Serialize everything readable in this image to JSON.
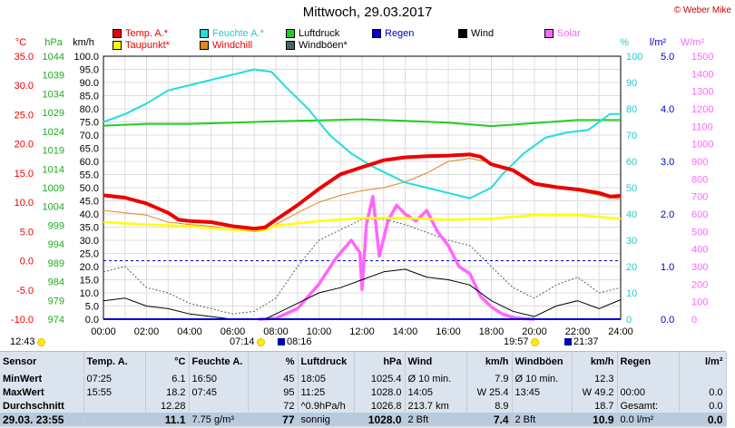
{
  "header": {
    "title": "Mittwoch, 29.03.2017",
    "copyright": "© Weber Mike"
  },
  "legend": [
    {
      "label": "Temp. A.*",
      "color": "#ee0000"
    },
    {
      "label": "Taupunkt*",
      "color": "#ffff00"
    },
    {
      "label": "Feuchte A.*",
      "color": "#22dddd"
    },
    {
      "label": "Windchill",
      "color": "#dd8822"
    },
    {
      "label": "Luftdruck",
      "color": "#22cc22"
    },
    {
      "label": "Windböen*",
      "color": "#446666"
    },
    {
      "label": "Regen",
      "color": "#0000dd"
    },
    {
      "label": "Wind",
      "color": "#000000"
    },
    {
      "label": "Solar",
      "color": "#ff66ff"
    }
  ],
  "events": {
    "sunrise_approx": "07:14",
    "moonrise": "08:16",
    "sunset_approx": "19:57",
    "moonset": "21:37",
    "extra_time": "12:43"
  },
  "chart_data": {
    "type": "line",
    "title": "Mittwoch, 29.03.2017",
    "x_range": [
      "00:00",
      "24:00"
    ],
    "x_ticks": [
      "00:00",
      "02:00",
      "04:00",
      "06:00",
      "08:00",
      "10:00",
      "12:00",
      "14:00",
      "16:00",
      "18:00",
      "20:00",
      "22:00",
      "24:00"
    ],
    "axes": {
      "temp": {
        "unit": "°C",
        "range": [
          -10,
          35
        ],
        "ticks": [
          "35.0",
          "30.0",
          "25.0",
          "20.0",
          "15.0",
          "10.0",
          "5.0",
          "0.0",
          "-5.0",
          "-10.0"
        ]
      },
      "pressure": {
        "unit": "hPa",
        "range": [
          974,
          1044
        ],
        "ticks": [
          "1044",
          "1039",
          "1034",
          "1029",
          "1024",
          "1019",
          "1014",
          "1009",
          "1004",
          "999",
          "994",
          "989",
          "984",
          "979",
          "974"
        ]
      },
      "wind": {
        "unit": "km/h",
        "range": [
          0,
          100
        ],
        "ticks": [
          "100.0",
          "95.0",
          "90.0",
          "85.0",
          "80.0",
          "75.0",
          "70.0",
          "65.0",
          "60.0",
          "55.0",
          "50.0",
          "45.0",
          "40.0",
          "35.0",
          "30.0",
          "25.0",
          "20.0",
          "15.0",
          "10.0",
          "5.0",
          "0.0"
        ]
      },
      "humidity": {
        "unit": "%",
        "range": [
          0,
          100
        ],
        "ticks": [
          "100",
          "90",
          "80",
          "70",
          "60",
          "50",
          "40",
          "30",
          "20",
          "10",
          "0"
        ]
      },
      "rain": {
        "unit": "l/m²",
        "range": [
          0,
          5
        ],
        "ticks": [
          "5.0",
          "4.0",
          "3.0",
          "2.0",
          "1.0",
          "0.0"
        ]
      },
      "solar": {
        "unit": "W/m²",
        "range": [
          0,
          1500
        ],
        "ticks": [
          "1500",
          "1400",
          "1300",
          "1200",
          "1100",
          "1000",
          "900",
          "800",
          "700",
          "600",
          "500",
          "400",
          "300",
          "200",
          "100",
          "0"
        ]
      }
    },
    "series": [
      {
        "name": "Temp. A.*",
        "axis": "temp",
        "color": "#ee0000",
        "x": [
          0,
          1,
          2,
          3,
          3.5,
          4,
          5,
          6,
          7,
          7.5,
          8,
          9,
          10,
          11,
          12,
          12.5,
          13,
          14,
          15,
          16,
          17,
          17.5,
          18,
          19,
          20,
          21,
          22,
          23,
          23.5,
          24
        ],
        "y": [
          11.2,
          10.8,
          9.8,
          8.2,
          7.0,
          6.8,
          6.6,
          5.9,
          5.5,
          5.7,
          7.0,
          9.5,
          12.3,
          14.8,
          16.0,
          16.6,
          17.2,
          17.7,
          17.9,
          18.0,
          18.2,
          17.8,
          16.5,
          15.5,
          13.2,
          12.6,
          12.2,
          11.6,
          11.0,
          11.1
        ]
      },
      {
        "name": "Taupunkt*",
        "axis": "temp",
        "color": "#ffff00",
        "x": [
          0,
          2,
          4,
          6,
          7.5,
          8,
          10,
          12,
          14,
          16,
          18,
          20,
          22,
          24
        ],
        "y": [
          6.6,
          6.2,
          5.9,
          5.3,
          5.3,
          6.0,
          6.8,
          7.3,
          7.3,
          7.0,
          7.2,
          7.8,
          7.8,
          7.2
        ]
      },
      {
        "name": "Feuchte A.*",
        "axis": "humidity",
        "color": "#22dddd",
        "x": [
          0,
          1,
          2,
          3,
          4,
          5,
          6,
          7,
          7.8,
          8.5,
          9.5,
          10.5,
          11.5,
          12.5,
          14,
          15,
          16,
          17,
          18,
          18.5,
          19.5,
          20.5,
          21.5,
          22.5,
          23.5,
          24
        ],
        "y": [
          75,
          78,
          82,
          87,
          89,
          91,
          93,
          95,
          94,
          88,
          80,
          70,
          63,
          58,
          52,
          50,
          48,
          46,
          50,
          55,
          63,
          69,
          71,
          72,
          78,
          78
        ]
      },
      {
        "name": "Luftdruck",
        "axis": "pressure",
        "color": "#22cc22",
        "x": [
          0,
          2,
          4,
          6,
          8,
          10,
          12,
          14,
          16,
          18,
          20,
          22,
          24
        ],
        "y": [
          1025.5,
          1026.0,
          1026.0,
          1026.3,
          1026.7,
          1026.9,
          1027.2,
          1026.8,
          1026.3,
          1025.4,
          1026.2,
          1027.0,
          1027.0
        ]
      },
      {
        "name": "Windchill",
        "axis": "temp",
        "color": "#dd8822",
        "x": [
          0,
          1,
          2,
          3,
          4,
          5,
          6,
          7,
          7.5,
          8,
          9,
          10,
          11,
          12,
          13,
          14,
          15,
          16,
          17,
          18,
          19,
          20,
          21,
          22,
          23,
          24
        ],
        "y": [
          8.6,
          8.2,
          7.8,
          6.6,
          6.2,
          5.9,
          5.3,
          5.0,
          5.2,
          6.2,
          8.2,
          10.0,
          11.2,
          12.0,
          12.5,
          13.5,
          15.0,
          17.0,
          17.5,
          16.8,
          15.2,
          13.2,
          12.5,
          12.0,
          11.2,
          10.5
        ]
      },
      {
        "name": "Windböen*",
        "axis": "wind",
        "color": "#446666",
        "x": [
          0,
          1,
          2,
          3,
          4,
          5,
          6,
          7,
          8,
          9,
          10,
          11,
          12,
          13,
          14,
          15,
          16,
          17,
          18,
          19,
          20,
          21,
          22,
          23,
          24
        ],
        "y": [
          18,
          20,
          12,
          10,
          6,
          4,
          2,
          3,
          8,
          20,
          30,
          34,
          38,
          38,
          36,
          33,
          30,
          28,
          20,
          12,
          8,
          13,
          16,
          10,
          12
        ]
      },
      {
        "name": "Wind",
        "axis": "wind",
        "color": "#000000",
        "x": [
          0,
          1,
          2,
          3,
          4,
          5,
          6,
          7,
          7.5,
          8,
          9,
          10,
          11,
          12,
          13,
          14,
          15,
          16,
          17,
          18,
          19,
          20,
          21,
          22,
          23,
          24
        ],
        "y": [
          7,
          8,
          5,
          4,
          2,
          1,
          0,
          0,
          0,
          2,
          6,
          10,
          12,
          15,
          18,
          19,
          16,
          15,
          13,
          7,
          3,
          1,
          5,
          7,
          4,
          7.4
        ]
      },
      {
        "name": "Solar",
        "axis": "solar",
        "color": "#ff66ff",
        "x": [
          7.2,
          8,
          9,
          10,
          10.8,
          11.5,
          11.9,
          12.0,
          12.2,
          12.5,
          12.8,
          13.2,
          13.6,
          14,
          14.5,
          15,
          15.5,
          16,
          16.5,
          17,
          17.5,
          18,
          18.5,
          19,
          19.5,
          20
        ],
        "y": [
          0,
          5,
          60,
          200,
          350,
          450,
          380,
          170,
          540,
          700,
          360,
          560,
          650,
          600,
          560,
          620,
          500,
          420,
          300,
          260,
          130,
          70,
          30,
          10,
          3,
          0
        ]
      },
      {
        "name": "Regen",
        "axis": "rain",
        "color": "#0000dd",
        "x": [
          0,
          24
        ],
        "y": [
          0,
          0
        ]
      }
    ],
    "reference_lines": [
      {
        "axis": "temp",
        "value": 0,
        "style": "dashed",
        "color": "#0000cc"
      }
    ],
    "grid": true
  },
  "stats": {
    "headers": [
      "Sensor",
      "Temp. A.",
      "°C",
      "Feuchte A.",
      "%",
      "Luftdruck",
      "hPa",
      "Wind",
      "km/h",
      "Windböen",
      "km/h",
      "Regen",
      "l/m²"
    ],
    "rows": [
      [
        "MinWert",
        "07:25",
        "6.1",
        "16:50",
        "45",
        "18:05",
        "1025.4",
        "Ø 10 min.",
        "7.9",
        "Ø 10 min.",
        "12.3",
        "",
        ""
      ],
      [
        "MaxWert",
        "15:55",
        "18.2",
        "07:45",
        "95",
        "11:25",
        "1028.0",
        "14:05",
        "W 25.4",
        "13:45",
        "W 49.2",
        "00:00",
        "0.0"
      ],
      [
        "Durchschnitt",
        "",
        "12.28",
        "",
        "72",
        "^0.9hPa/h",
        "1026.8",
        "213.7 km",
        "8.9",
        "",
        "18.7",
        "Gesamt:",
        "0.0"
      ],
      [
        "29.03. 23:55",
        "",
        "11.1",
        "7.75 g/m³",
        "77",
        "sonnig",
        "1028.0",
        "2 Bft",
        "7.4",
        "2 Bft",
        "10.9",
        "0.0 l/m²",
        "0.0"
      ]
    ]
  }
}
